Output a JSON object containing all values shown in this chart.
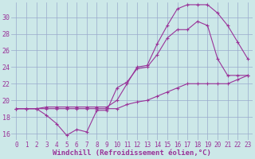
{
  "bg_color": "#cce8e8",
  "line_color": "#993399",
  "grid_color": "#99aacc",
  "xlim": [
    -0.5,
    23.5
  ],
  "ylim": [
    15.2,
    31.8
  ],
  "yticks": [
    16,
    18,
    20,
    22,
    24,
    26,
    28,
    30
  ],
  "xticks": [
    0,
    1,
    2,
    3,
    4,
    5,
    6,
    7,
    8,
    9,
    10,
    11,
    12,
    13,
    14,
    15,
    16,
    17,
    18,
    19,
    20,
    21,
    22,
    23
  ],
  "xlabel": "Windchill (Refroidissement éolien,°C)",
  "line1_x": [
    0,
    1,
    2,
    3,
    4,
    5,
    6,
    7,
    8,
    9,
    10,
    11,
    12,
    13,
    14,
    15,
    16,
    17,
    18,
    19,
    20,
    21,
    22,
    23
  ],
  "line1_y": [
    19,
    19,
    19,
    18.2,
    17.2,
    15.8,
    16.5,
    16.2,
    18.8,
    18.8,
    21.5,
    22.2,
    23.8,
    24.0,
    25.5,
    27.5,
    28.5,
    28.5,
    29.5,
    29.0,
    25.0,
    23.0,
    23.0,
    23.0
  ],
  "line2_x": [
    0,
    1,
    2,
    3,
    4,
    5,
    6,
    7,
    8,
    9,
    10,
    11,
    12,
    13,
    14,
    15,
    16,
    17,
    18,
    19,
    20,
    21,
    22,
    23
  ],
  "line2_y": [
    19,
    19,
    19,
    19.2,
    19.2,
    19.2,
    19.2,
    19.2,
    19.2,
    19.2,
    20.0,
    22.0,
    24.0,
    24.2,
    26.8,
    29.0,
    31.0,
    31.5,
    31.5,
    31.5,
    30.5,
    29.0,
    27.0,
    25.0
  ],
  "line3_x": [
    0,
    1,
    2,
    3,
    4,
    5,
    6,
    7,
    8,
    9,
    10,
    11,
    12,
    13,
    14,
    15,
    16,
    17,
    18,
    19,
    20,
    21,
    22,
    23
  ],
  "line3_y": [
    19,
    19,
    19,
    19,
    19,
    19,
    19,
    19,
    19,
    19,
    19,
    19.5,
    19.8,
    20.0,
    20.5,
    21.0,
    21.5,
    22.0,
    22.0,
    22.0,
    22.0,
    22.0,
    22.5,
    23.0
  ],
  "tick_fontsize": 5.5,
  "xlabel_fontsize": 6.5
}
